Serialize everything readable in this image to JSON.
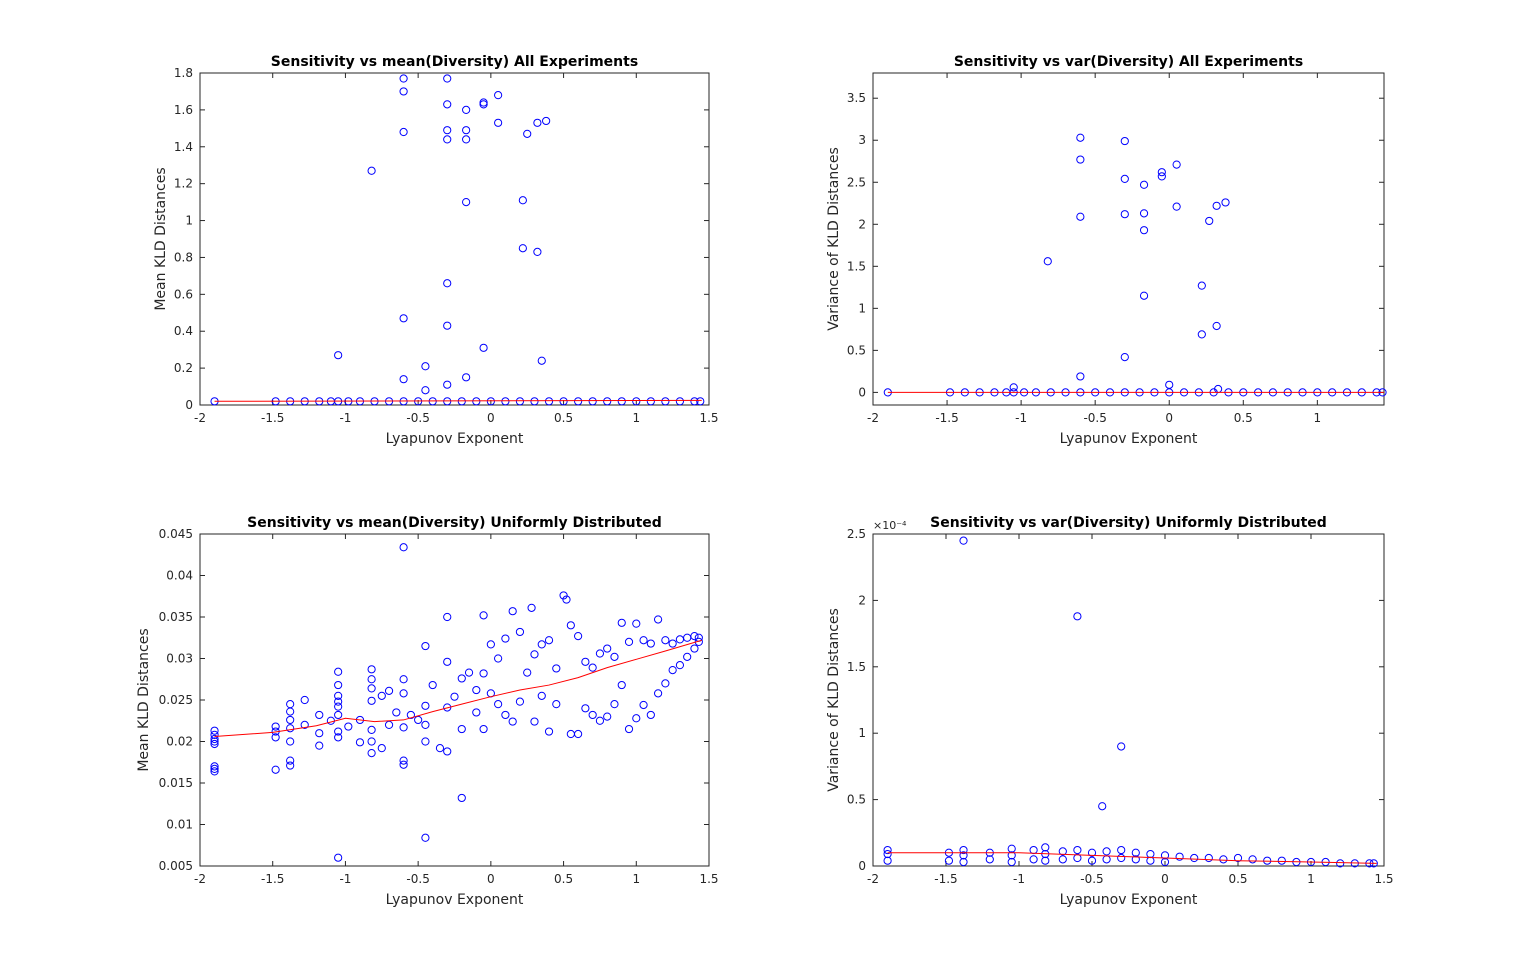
{
  "chart_data": [
    {
      "type": "scatter",
      "title": "Sensitivity vs mean(Diversity) All Experiments",
      "xlabel": "Lyapunov Exponent",
      "ylabel": "Mean KLD Distances",
      "xlim": [
        -2,
        1.5
      ],
      "ylim": [
        0,
        1.8
      ],
      "xticks": [
        "-2",
        "-1.5",
        "-1",
        "-0.5",
        "0",
        "0.5",
        "1",
        "1.5"
      ],
      "yticks": [
        "0",
        "0.2",
        "0.4",
        "0.6",
        "0.8",
        "1",
        "1.2",
        "1.4",
        "1.6",
        "1.8"
      ],
      "colors": {
        "points": "#0000ff",
        "fit": "#ff0000"
      },
      "series": [
        {
          "kind": "markers",
          "x": [
            -1.9,
            -1.48,
            -1.38,
            -1.28,
            -1.18,
            -1.1,
            -1.05,
            -0.98,
            -0.9,
            -0.8,
            -0.7,
            -0.6,
            -0.5,
            -0.4,
            -0.3,
            -0.2,
            -0.1,
            0.0,
            0.1,
            0.2,
            0.3,
            0.4,
            0.5,
            0.6,
            0.7,
            0.8,
            0.9,
            1.0,
            1.1,
            1.2,
            1.3,
            1.4,
            1.44,
            -1.05,
            -0.82,
            -0.6,
            -0.6,
            -0.6,
            -0.6,
            -0.6,
            -0.45,
            -0.45,
            -0.3,
            -0.3,
            -0.3,
            -0.3,
            -0.3,
            -0.3,
            -0.3,
            -0.17,
            -0.17,
            -0.17,
            -0.17,
            -0.17,
            -0.05,
            -0.05,
            -0.05,
            0.05,
            0.05,
            0.22,
            0.22,
            0.25,
            0.32,
            0.32,
            0.35,
            0.38
          ],
          "y": [
            0.02,
            0.02,
            0.02,
            0.02,
            0.02,
            0.02,
            0.02,
            0.02,
            0.02,
            0.02,
            0.02,
            0.02,
            0.02,
            0.02,
            0.02,
            0.02,
            0.02,
            0.02,
            0.02,
            0.02,
            0.02,
            0.02,
            0.02,
            0.02,
            0.02,
            0.02,
            0.02,
            0.02,
            0.02,
            0.02,
            0.02,
            0.02,
            0.02,
            0.27,
            1.27,
            1.77,
            1.7,
            1.48,
            0.47,
            0.14,
            0.21,
            0.08,
            1.77,
            1.63,
            1.49,
            1.44,
            0.66,
            0.43,
            0.11,
            1.6,
            1.49,
            1.44,
            1.1,
            0.15,
            1.64,
            1.63,
            0.31,
            1.68,
            1.53,
            1.11,
            0.85,
            1.47,
            1.53,
            0.83,
            0.24,
            1.54
          ]
        },
        {
          "kind": "line",
          "x": [
            -1.9,
            1.45
          ],
          "y": [
            0.02,
            0.025
          ]
        }
      ]
    },
    {
      "type": "scatter",
      "title": "Sensitivity vs var(Diversity) All Experiments",
      "xlabel": "Lyapunov Exponent",
      "ylabel": "Variance of KLD Distances",
      "xlim": [
        -2,
        1.45
      ],
      "ylim": [
        -0.15,
        3.8
      ],
      "xticks": [
        "-2",
        "-1.5",
        "-1",
        "-0.5",
        "0",
        "0.5",
        "1"
      ],
      "yticks": [
        "0",
        "0.5",
        "1",
        "1.5",
        "2",
        "2.5",
        "3",
        "3.5"
      ],
      "colors": {
        "points": "#0000ff",
        "fit": "#ff0000"
      },
      "series": [
        {
          "kind": "markers",
          "x": [
            -1.9,
            -1.48,
            -1.38,
            -1.28,
            -1.18,
            -1.1,
            -1.05,
            -0.98,
            -0.9,
            -0.8,
            -0.7,
            -0.6,
            -0.5,
            -0.4,
            -0.3,
            -0.2,
            -0.1,
            0.0,
            0.1,
            0.2,
            0.3,
            0.4,
            0.5,
            0.6,
            0.7,
            0.8,
            0.9,
            1.0,
            1.1,
            1.2,
            1.3,
            1.4,
            1.44,
            -1.05,
            -0.82,
            -0.6,
            -0.6,
            -0.6,
            -0.6,
            -0.3,
            -0.3,
            -0.3,
            -0.3,
            -0.17,
            -0.17,
            -0.17,
            -0.17,
            -0.05,
            -0.05,
            0.0,
            0.05,
            0.05,
            0.22,
            0.22,
            0.27,
            0.32,
            0.32,
            0.33,
            0.38
          ],
          "y": [
            0,
            0,
            0,
            0,
            0,
            0,
            0,
            0,
            0,
            0,
            0,
            0,
            0,
            0,
            0,
            0,
            0,
            0,
            0,
            0,
            0,
            0,
            0,
            0,
            0,
            0,
            0,
            0,
            0,
            0,
            0,
            0,
            0,
            0.06,
            1.56,
            3.03,
            2.77,
            2.09,
            0.19,
            2.99,
            2.54,
            2.12,
            0.42,
            2.47,
            2.13,
            1.93,
            1.15,
            2.62,
            2.57,
            0.09,
            2.71,
            2.21,
            1.27,
            0.69,
            2.04,
            2.22,
            0.79,
            0.04,
            2.26
          ]
        },
        {
          "kind": "line",
          "x": [
            -1.9,
            1.45
          ],
          "y": [
            0,
            0
          ]
        }
      ]
    },
    {
      "type": "scatter",
      "title": "Sensitivity vs mean(Diversity) Uniformly Distributed",
      "xlabel": "Lyapunov Exponent",
      "ylabel": "Mean KLD Distances",
      "xlim": [
        -2,
        1.5
      ],
      "ylim": [
        0.005,
        0.045
      ],
      "xticks": [
        "-2",
        "-1.5",
        "-1",
        "-0.5",
        "0",
        "0.5",
        "1",
        "1.5"
      ],
      "yticks": [
        "0.005",
        "0.01",
        "0.015",
        "0.02",
        "0.025",
        "0.03",
        "0.035",
        "0.04",
        "0.045"
      ],
      "colors": {
        "points": "#0000ff",
        "fit": "#ff0000"
      },
      "series": [
        {
          "kind": "markers",
          "x": [
            -1.9,
            -1.9,
            -1.9,
            -1.9,
            -1.9,
            -1.9,
            -1.9,
            -1.9,
            -1.48,
            -1.48,
            -1.48,
            -1.48,
            -1.38,
            -1.38,
            -1.38,
            -1.38,
            -1.38,
            -1.38,
            -1.38,
            -1.28,
            -1.28,
            -1.18,
            -1.18,
            -1.18,
            -1.1,
            -1.05,
            -1.05,
            -1.05,
            -1.05,
            -1.05,
            -1.05,
            -1.05,
            -1.05,
            -1.05,
            -0.98,
            -0.9,
            -0.9,
            -0.82,
            -0.82,
            -0.82,
            -0.82,
            -0.82,
            -0.82,
            -0.82,
            -0.75,
            -0.75,
            -0.7,
            -0.7,
            -0.65,
            -0.6,
            -0.6,
            -0.6,
            -0.6,
            -0.6,
            -0.6,
            -0.55,
            -0.5,
            -0.45,
            -0.45,
            -0.45,
            -0.45,
            -0.45,
            -0.4,
            -0.35,
            -0.3,
            -0.3,
            -0.3,
            -0.3,
            -0.25,
            -0.2,
            -0.2,
            -0.2,
            -0.15,
            -0.1,
            -0.1,
            -0.05,
            -0.05,
            -0.05,
            0.0,
            0.0,
            0.05,
            0.05,
            0.1,
            0.1,
            0.15,
            0.15,
            0.2,
            0.2,
            0.25,
            0.28,
            0.3,
            0.3,
            0.35,
            0.35,
            0.4,
            0.4,
            0.45,
            0.45,
            0.5,
            0.52,
            0.55,
            0.55,
            0.6,
            0.6,
            0.65,
            0.65,
            0.7,
            0.7,
            0.75,
            0.75,
            0.8,
            0.8,
            0.85,
            0.85,
            0.9,
            0.9,
            0.95,
            0.95,
            1.0,
            1.0,
            1.05,
            1.05,
            1.1,
            1.1,
            1.15,
            1.15,
            1.2,
            1.2,
            1.25,
            1.25,
            1.3,
            1.3,
            1.35,
            1.35,
            1.4,
            1.4,
            1.43,
            1.43
          ],
          "y": [
            0.0213,
            0.0208,
            0.0203,
            0.02,
            0.0197,
            0.017,
            0.0167,
            0.0164,
            0.0218,
            0.0212,
            0.0205,
            0.0166,
            0.0245,
            0.0236,
            0.0226,
            0.0216,
            0.02,
            0.0177,
            0.0171,
            0.025,
            0.022,
            0.0232,
            0.021,
            0.0195,
            0.0225,
            0.0284,
            0.0268,
            0.0255,
            0.0248,
            0.0242,
            0.0232,
            0.0212,
            0.0205,
            0.006,
            0.0218,
            0.0226,
            0.0199,
            0.0287,
            0.0275,
            0.0264,
            0.0249,
            0.0214,
            0.02,
            0.0186,
            0.0255,
            0.0192,
            0.0261,
            0.022,
            0.0235,
            0.0434,
            0.0275,
            0.0258,
            0.0217,
            0.0177,
            0.0172,
            0.0232,
            0.0226,
            0.0315,
            0.0243,
            0.022,
            0.02,
            0.0084,
            0.0268,
            0.0192,
            0.035,
            0.0296,
            0.0241,
            0.0188,
            0.0254,
            0.0276,
            0.0215,
            0.0132,
            0.0283,
            0.0262,
            0.0235,
            0.0352,
            0.0282,
            0.0215,
            0.0317,
            0.0258,
            0.03,
            0.0245,
            0.0324,
            0.0232,
            0.0357,
            0.0224,
            0.0332,
            0.0248,
            0.0283,
            0.0361,
            0.0305,
            0.0224,
            0.0317,
            0.0255,
            0.0322,
            0.0212,
            0.0288,
            0.0245,
            0.0376,
            0.0371,
            0.034,
            0.0209,
            0.0327,
            0.0209,
            0.0296,
            0.024,
            0.0289,
            0.0232,
            0.0306,
            0.0225,
            0.0312,
            0.023,
            0.0302,
            0.0245,
            0.0343,
            0.0268,
            0.032,
            0.0215,
            0.0342,
            0.0228,
            0.0322,
            0.0244,
            0.0318,
            0.0232,
            0.0347,
            0.0258,
            0.0322,
            0.027,
            0.0318,
            0.0286,
            0.0323,
            0.0292,
            0.0325,
            0.0302,
            0.0327,
            0.0312,
            0.0325,
            0.032
          ]
        },
        {
          "kind": "line",
          "x": [
            -1.9,
            -1.5,
            -1.2,
            -1.0,
            -0.8,
            -0.6,
            -0.4,
            -0.2,
            0.0,
            0.2,
            0.4,
            0.6,
            0.8,
            1.0,
            1.2,
            1.45
          ],
          "y": [
            0.0206,
            0.0211,
            0.0219,
            0.0228,
            0.0224,
            0.0226,
            0.0236,
            0.0245,
            0.0254,
            0.0262,
            0.0268,
            0.0277,
            0.0289,
            0.0299,
            0.0309,
            0.0322
          ]
        }
      ]
    },
    {
      "type": "scatter",
      "title": "Sensitivity vs var(Diversity) Uniformly Distributed",
      "xlabel": "Lyapunov Exponent",
      "ylabel": "Variance of KLD Distances",
      "y_exponent": "×10⁻⁴",
      "xlim": [
        -2,
        1.5
      ],
      "ylim": [
        0,
        2.5
      ],
      "xticks": [
        "-2",
        "-1.5",
        "-1",
        "-0.5",
        "0",
        "0.5",
        "1",
        "1.5"
      ],
      "yticks": [
        "0",
        "0.5",
        "1",
        "1.5",
        "2",
        "2.5"
      ],
      "colors": {
        "points": "#0000ff",
        "fit": "#ff0000"
      },
      "series": [
        {
          "kind": "markers",
          "x": [
            -1.9,
            -1.9,
            -1.9,
            -1.48,
            -1.48,
            -1.38,
            -1.38,
            -1.38,
            -1.2,
            -1.2,
            -1.05,
            -1.05,
            -1.05,
            -0.9,
            -0.9,
            -0.82,
            -0.82,
            -0.82,
            -0.7,
            -0.7,
            -0.6,
            -0.6,
            -0.5,
            -0.5,
            -0.4,
            -0.4,
            -0.3,
            -0.3,
            -0.2,
            -0.2,
            -0.1,
            -0.1,
            0.0,
            0.0,
            0.1,
            0.2,
            0.3,
            0.4,
            0.5,
            0.6,
            0.7,
            0.8,
            0.9,
            1.0,
            1.1,
            1.2,
            1.3,
            1.4,
            1.43,
            -1.38,
            -0.6,
            -0.3,
            -0.43
          ],
          "y": [
            0.12,
            0.09,
            0.04,
            0.1,
            0.04,
            0.12,
            0.08,
            0.03,
            0.1,
            0.05,
            0.13,
            0.08,
            0.03,
            0.12,
            0.05,
            0.14,
            0.09,
            0.04,
            0.11,
            0.05,
            0.12,
            0.06,
            0.1,
            0.04,
            0.11,
            0.05,
            0.12,
            0.06,
            0.1,
            0.05,
            0.09,
            0.04,
            0.08,
            0.03,
            0.07,
            0.06,
            0.06,
            0.05,
            0.06,
            0.05,
            0.04,
            0.04,
            0.03,
            0.03,
            0.03,
            0.02,
            0.02,
            0.02,
            0.02,
            2.45,
            1.88,
            0.9,
            0.45
          ]
        },
        {
          "kind": "line",
          "x": [
            -1.9,
            -1.0,
            0.0,
            0.5,
            1.0,
            1.45
          ],
          "y": [
            0.1,
            0.1,
            0.06,
            0.04,
            0.03,
            0.02
          ]
        }
      ]
    }
  ]
}
